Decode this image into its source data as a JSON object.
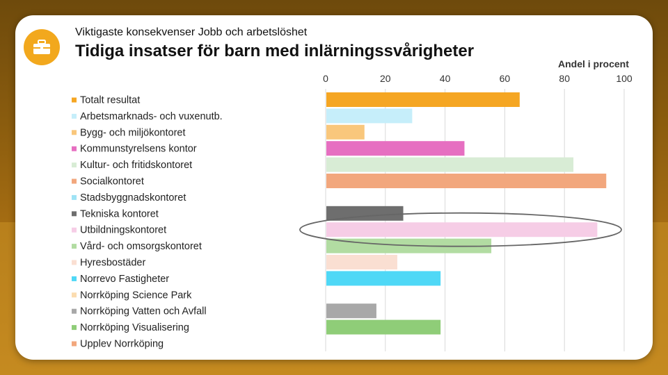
{
  "header": {
    "kicker": "Viktigaste konsekvenser Jobb och arbetslöshet",
    "title": "Tidiga insatser för barn med inlärningssvårigheter",
    "icon": "briefcase-icon"
  },
  "colors": {
    "accent": "#f2a81d",
    "highlight_ring": "#666666"
  },
  "chart_data": {
    "type": "bar",
    "orientation": "horizontal",
    "title": "Tidiga insatser för barn med inlärningssvårigheter",
    "unit_label": "Andel i procent",
    "xlim": [
      0,
      100
    ],
    "ticks": [
      0,
      20,
      40,
      60,
      80,
      100
    ],
    "grid": true,
    "legend_position": "left",
    "highlighted_category": "Utbildningskontoret",
    "categories": [
      "Totalt resultat",
      "Arbetsmarknads- och vuxenutb.",
      "Bygg- och miljökontoret",
      "Kommunstyrelsens kontor",
      "Kultur- och fritidskontoret",
      "Socialkontoret",
      "Stadsbyggnadskontoret",
      "Tekniska kontoret",
      "Utbildningskontoret",
      "Vård- och omsorgskontoret",
      "Hyresbostäder",
      "Norrevo Fastigheter",
      "Norrköping Science Park",
      "Norrköping Vatten och Avfall",
      "Norrköping Visualisering",
      "Upplev Norrköping"
    ],
    "values": [
      65,
      29,
      13,
      46.5,
      83,
      94,
      0,
      26,
      91,
      55.5,
      24,
      38.5,
      0,
      17,
      38.5,
      0
    ],
    "colors": [
      "#f5a623",
      "#c6eefa",
      "#f9c77c",
      "#e66fc1",
      "#d8ecd5",
      "#f2a77d",
      "#9fe3f5",
      "#6e6e6e",
      "#f6cde6",
      "#b2dca2",
      "#fadfd2",
      "#4fd8f6",
      "#fbdcb0",
      "#a8a8a8",
      "#8fcd78",
      "#f2a77d"
    ]
  }
}
